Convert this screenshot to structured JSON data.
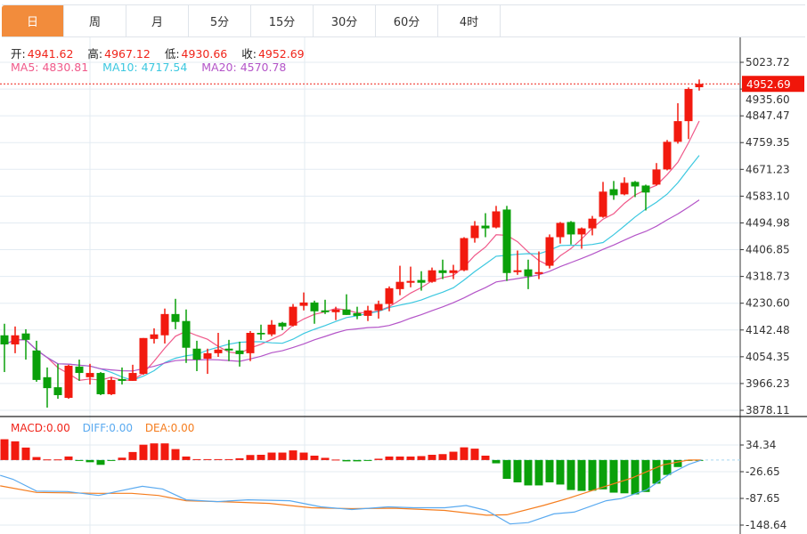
{
  "tabs": [
    "日",
    "周",
    "月",
    "5分",
    "15分",
    "30分",
    "60分",
    "4时"
  ],
  "active_tab": 0,
  "ohlc_legend": {
    "open_label": "开:",
    "open": "4941.62",
    "high_label": "高:",
    "high": "4967.12",
    "low_label": "低:",
    "low": "4930.66",
    "close_label": "收:",
    "close": "4952.69"
  },
  "ma_legend": {
    "ma5": "MA5: 4830.81",
    "ma10": "MA10: 4717.54",
    "ma20": "MA20: 4570.78"
  },
  "macd_legend": {
    "macd": "MACD:0.00",
    "diff": "DIFF:0.00",
    "dea": "DEA:0.00"
  },
  "last_price": "4952.69",
  "colors": {
    "up": "#f21a0f",
    "down": "#0aa00a",
    "ma5": "#f0598a",
    "ma10": "#3cc8e0",
    "ma20": "#b455c8",
    "diff": "#5aaaf0",
    "dea": "#f57d1e",
    "accent": "#f28c3c"
  },
  "chart_data": {
    "type": "candlestick",
    "price_axis_labels": [
      "5023.72",
      "4935.60",
      "4847.47",
      "4759.35",
      "4671.23",
      "4583.10",
      "4494.98",
      "4406.85",
      "4318.73",
      "4230.60",
      "4142.48",
      "4054.35",
      "3966.23",
      "3878.11"
    ],
    "price_range": [
      3878.11,
      5023.72
    ],
    "macd_axis_labels": [
      "34.34",
      "-26.65",
      "-87.65",
      "-148.64"
    ],
    "macd_range": [
      -148.64,
      34.34
    ],
    "candles_ohlc": [
      [
        4125,
        4163,
        4004,
        4095
      ],
      [
        4095,
        4154,
        4066,
        4125
      ],
      [
        4131,
        4145,
        4045,
        4110
      ],
      [
        4075,
        4107,
        3972,
        3978
      ],
      [
        3987,
        4019,
        3887,
        3951
      ],
      [
        3954,
        4031,
        3916,
        3928
      ],
      [
        3919,
        4028,
        3916,
        4025
      ],
      [
        4022,
        4045,
        3975,
        4001
      ],
      [
        3987,
        4031,
        3963,
        4001
      ],
      [
        4001,
        4004,
        3928,
        3931
      ],
      [
        3931,
        3987,
        3928,
        3978
      ],
      [
        3981,
        4019,
        3963,
        3975
      ],
      [
        3975,
        4028,
        3975,
        4001
      ],
      [
        3998,
        4116,
        3995,
        4116
      ],
      [
        4113,
        4148,
        4098,
        4128
      ],
      [
        4125,
        4213,
        4098,
        4195
      ],
      [
        4195,
        4245,
        4145,
        4169
      ],
      [
        4172,
        4210,
        4034,
        4084
      ],
      [
        4081,
        4107,
        4007,
        4045
      ],
      [
        4048,
        4081,
        3998,
        4066
      ],
      [
        4066,
        4133,
        4054,
        4078
      ],
      [
        4081,
        4110,
        4040,
        4075
      ],
      [
        4075,
        4104,
        4022,
        4063
      ],
      [
        4066,
        4139,
        4040,
        4133
      ],
      [
        4133,
        4160,
        4110,
        4128
      ],
      [
        4128,
        4175,
        4122,
        4160
      ],
      [
        4166,
        4169,
        4142,
        4154
      ],
      [
        4157,
        4228,
        4154,
        4219
      ],
      [
        4222,
        4266,
        4207,
        4233
      ],
      [
        4233,
        4239,
        4163,
        4204
      ],
      [
        4207,
        4242,
        4195,
        4201
      ],
      [
        4201,
        4219,
        4175,
        4210
      ],
      [
        4210,
        4260,
        4192,
        4192
      ],
      [
        4198,
        4219,
        4178,
        4189
      ],
      [
        4189,
        4222,
        4172,
        4207
      ],
      [
        4207,
        4239,
        4180,
        4228
      ],
      [
        4228,
        4286,
        4204,
        4280
      ],
      [
        4277,
        4354,
        4257,
        4301
      ],
      [
        4298,
        4351,
        4283,
        4304
      ],
      [
        4307,
        4336,
        4272,
        4298
      ],
      [
        4301,
        4348,
        4298,
        4339
      ],
      [
        4339,
        4374,
        4310,
        4330
      ],
      [
        4330,
        4357,
        4310,
        4339
      ],
      [
        4339,
        4448,
        4336,
        4445
      ],
      [
        4445,
        4501,
        4430,
        4486
      ],
      [
        4486,
        4527,
        4448,
        4477
      ],
      [
        4480,
        4551,
        4477,
        4533
      ],
      [
        4539,
        4551,
        4304,
        4330
      ],
      [
        4333,
        4404,
        4324,
        4339
      ],
      [
        4342,
        4374,
        4277,
        4319
      ],
      [
        4327,
        4401,
        4310,
        4333
      ],
      [
        4354,
        4457,
        4345,
        4448
      ],
      [
        4448,
        4498,
        4427,
        4495
      ],
      [
        4498,
        4501,
        4424,
        4457
      ],
      [
        4457,
        4480,
        4410,
        4477
      ],
      [
        4477,
        4518,
        4454,
        4509
      ],
      [
        4515,
        4630,
        4512,
        4598
      ],
      [
        4606,
        4633,
        4571,
        4586
      ],
      [
        4589,
        4645,
        4586,
        4627
      ],
      [
        4630,
        4633,
        4580,
        4615
      ],
      [
        4618,
        4621,
        4536,
        4595
      ],
      [
        4621,
        4692,
        4618,
        4671
      ],
      [
        4671,
        4768,
        4668,
        4762
      ],
      [
        4762,
        4889,
        4756,
        4830
      ],
      [
        4830,
        4941,
        4771,
        4936
      ],
      [
        4941.62,
        4967.12,
        4930.66,
        4952.69
      ]
    ],
    "macd_histogram": [
      47.5,
      42.7,
      28.5,
      6.8,
      1.4,
      1.4,
      8.1,
      -1.4,
      -5,
      -11,
      -1.5,
      5.4,
      18.3,
      35,
      38,
      38,
      25,
      8,
      2,
      2,
      2,
      2,
      4,
      11.5,
      12,
      17,
      17,
      22,
      17,
      10,
      5,
      1,
      -3,
      -3,
      -2,
      3,
      8,
      8,
      8,
      9,
      12,
      13.5,
      19,
      29,
      26,
      10,
      -7.5,
      -43,
      -51,
      -58,
      -58,
      -51,
      -56,
      -68.5,
      -70.5,
      -70,
      -67,
      -74.5,
      -76,
      -78.5,
      -73,
      -54,
      -34,
      -16,
      -2,
      -0.5
    ],
    "diff_points": [
      [
        0.6,
        -35
      ],
      [
        1.8,
        -44
      ],
      [
        4,
        -71
      ],
      [
        6.9,
        -72
      ],
      [
        9.8,
        -81
      ],
      [
        11.7,
        -71
      ],
      [
        13.9,
        -60
      ],
      [
        15.8,
        -66
      ],
      [
        18,
        -91
      ],
      [
        20.9,
        -95
      ],
      [
        23.8,
        -91
      ],
      [
        27.7,
        -93
      ],
      [
        30.6,
        -107
      ],
      [
        33.5,
        -113
      ],
      [
        36.9,
        -107
      ],
      [
        39.3,
        -109
      ],
      [
        42.2,
        -109
      ],
      [
        44.2,
        -104
      ],
      [
        46.1,
        -115
      ],
      [
        48.3,
        -146
      ],
      [
        50,
        -143
      ],
      [
        52.4,
        -123
      ],
      [
        54.3,
        -119
      ],
      [
        57.3,
        -93
      ],
      [
        58.7,
        -88
      ],
      [
        61.1,
        -68
      ],
      [
        63.1,
        -34
      ],
      [
        65,
        -10
      ],
      [
        66.2,
        0
      ]
    ],
    "dea_points": [
      [
        0.6,
        -59
      ],
      [
        4,
        -74
      ],
      [
        9.8,
        -76
      ],
      [
        12.9,
        -76
      ],
      [
        15.4,
        -81
      ],
      [
        18,
        -93
      ],
      [
        22.4,
        -96
      ],
      [
        25.8,
        -99
      ],
      [
        29.7,
        -109
      ],
      [
        33.5,
        -111
      ],
      [
        37.4,
        -110
      ],
      [
        42.2,
        -115
      ],
      [
        46.1,
        -126
      ],
      [
        48,
        -125
      ],
      [
        51.4,
        -104
      ],
      [
        53.8,
        -87
      ],
      [
        56.7,
        -64
      ],
      [
        59.6,
        -42
      ],
      [
        62.6,
        -11
      ],
      [
        65,
        0
      ],
      [
        66.2,
        0
      ]
    ]
  }
}
